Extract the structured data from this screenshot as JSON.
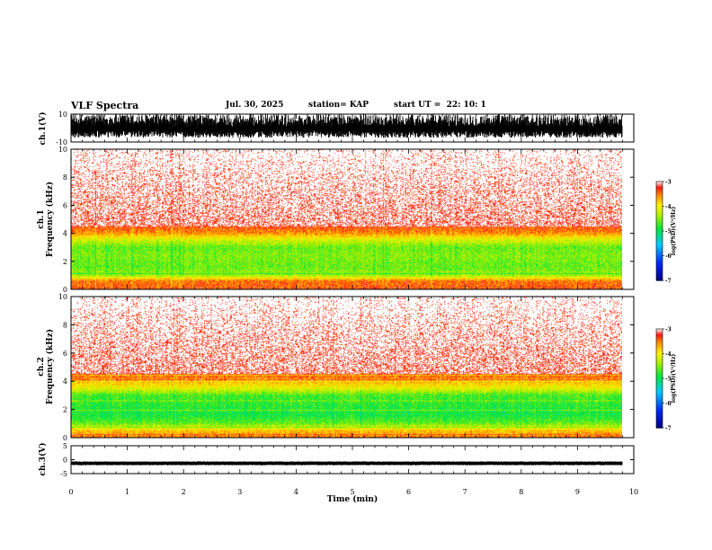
{
  "header": {
    "title": "VLF Spectra",
    "date": "Jul. 30, 2025",
    "station": "station= KAP",
    "start_ut": "start UT =  22: 10: 1"
  },
  "chart_data": [
    {
      "type": "line",
      "panel": "ch1-waveform",
      "ylabel": "ch.1(V)",
      "ylim": [
        -10,
        10
      ],
      "ytick_labels": [
        "10",
        "-10"
      ],
      "xlim": [
        0,
        10
      ],
      "data_end_min": 9.8,
      "description_of_series": "dense noise filling roughly -7 to +10 V"
    },
    {
      "type": "heatmap",
      "panel": "ch1-spectrogram",
      "ylabel_line1": "ch.1",
      "ylabel_line2": "Frequency (kHz)",
      "ylim": [
        0,
        10
      ],
      "ytick_labels": [
        "0",
        "2",
        "4",
        "6",
        "8",
        "10"
      ],
      "xlim": [
        0,
        10
      ],
      "data_end_min": 9.8,
      "band_profile": [
        {
          "f": 0.0,
          "v": -3.4
        },
        {
          "f": 0.6,
          "v": -3.5
        },
        {
          "f": 1.0,
          "v": -4.4
        },
        {
          "f": 1.6,
          "v": -4.6
        },
        {
          "f": 2.4,
          "v": -4.5
        },
        {
          "f": 3.0,
          "v": -4.6
        },
        {
          "f": 3.5,
          "v": -4.2
        },
        {
          "f": 4.0,
          "v": -3.6
        },
        {
          "f": 4.6,
          "v": -3.3
        },
        {
          "f": 6.0,
          "v": -3.05
        },
        {
          "f": 10.0,
          "v": -3.0
        }
      ],
      "colorbar": {
        "label": "log(PSD)(V²/Hz)",
        "range": [
          -7,
          -3
        ],
        "tick_labels": [
          "-3",
          "-4",
          "-5",
          "-6",
          "-7"
        ]
      }
    },
    {
      "type": "heatmap",
      "panel": "ch2-spectrogram",
      "ylabel_line1": "ch.2",
      "ylabel_line2": "Frequency (kHz)",
      "ylim": [
        0,
        10
      ],
      "ytick_labels": [
        "0",
        "2",
        "4",
        "6",
        "8",
        "10"
      ],
      "xlim": [
        0,
        10
      ],
      "data_end_min": 9.8,
      "band_profile": [
        {
          "f": 0.0,
          "v": -3.5
        },
        {
          "f": 0.5,
          "v": -3.8
        },
        {
          "f": 1.0,
          "v": -4.6
        },
        {
          "f": 1.6,
          "v": -4.9
        },
        {
          "f": 2.4,
          "v": -4.8
        },
        {
          "f": 3.0,
          "v": -4.7
        },
        {
          "f": 3.5,
          "v": -4.1
        },
        {
          "f": 4.0,
          "v": -3.7
        },
        {
          "f": 4.6,
          "v": -3.3
        },
        {
          "f": 6.0,
          "v": -3.05
        },
        {
          "f": 10.0,
          "v": -3.0
        }
      ],
      "colorbar": {
        "label": "log(PSD)(V²/Hz)",
        "range": [
          -7,
          -3
        ],
        "tick_labels": [
          "-3",
          "-4",
          "-5",
          "-6",
          "-7"
        ]
      }
    },
    {
      "type": "line",
      "panel": "ch3-waveform",
      "ylabel": "ch.3(V)",
      "ylim": [
        -5,
        5
      ],
      "ytick_labels": [
        "5",
        "0",
        "-5"
      ],
      "xlim": [
        0,
        10
      ],
      "data_end_min": 9.8,
      "description_of_series": "thin band around -1 to -2 V"
    }
  ],
  "xaxis": {
    "label": "Time (min)",
    "tick_labels": [
      "0",
      "1",
      "2",
      "3",
      "4",
      "5",
      "6",
      "7",
      "8",
      "9",
      "10"
    ]
  }
}
